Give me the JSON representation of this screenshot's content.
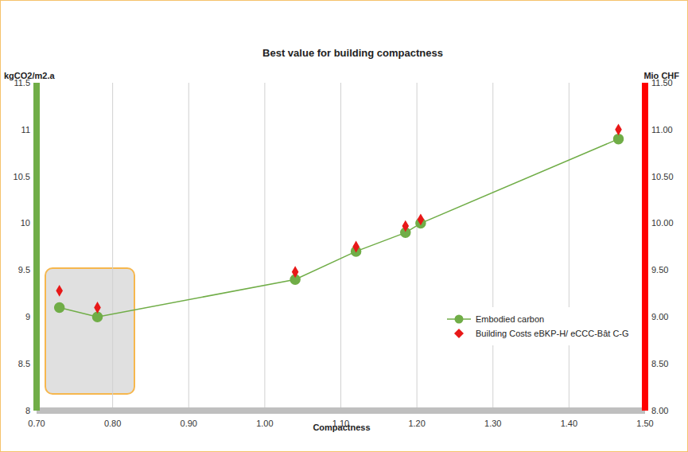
{
  "chart_data": {
    "type": "scatter",
    "title": "Best value for building compactness",
    "x_label": "Compactness",
    "y_label": "kgCO2/m2.a",
    "y2_label": "Mio CHF",
    "x": [
      0.73,
      0.78,
      1.04,
      1.12,
      1.185,
      1.205,
      1.465
    ],
    "series": [
      {
        "name": "Embodied carbon",
        "type": "line",
        "marker": "circle",
        "color": "#70ad47",
        "values": [
          9.1,
          9.0,
          9.4,
          9.7,
          9.9,
          10.0,
          10.9
        ]
      },
      {
        "name": "Building Costs eBKP-H/ eCCC-Bât C-G",
        "type": "scatter",
        "marker": "diamond",
        "color": "#e81818",
        "axis": "y2",
        "values": [
          9.28,
          9.1,
          9.48,
          9.75,
          9.97,
          10.04,
          11.0
        ]
      }
    ],
    "xlim": [
      0.7,
      1.5
    ],
    "xticks": [
      {
        "value": 0.7,
        "label": "0.70"
      },
      {
        "value": 0.8,
        "label": "0.80"
      },
      {
        "value": 0.9,
        "label": "0.90"
      },
      {
        "value": 1.0,
        "label": "1.00"
      },
      {
        "value": 1.1,
        "label": "1.10"
      },
      {
        "value": 1.2,
        "label": "1.20"
      },
      {
        "value": 1.3,
        "label": "1.30"
      },
      {
        "value": 1.4,
        "label": "1.40"
      },
      {
        "value": 1.5,
        "label": "1.50"
      }
    ],
    "ylim": [
      8,
      11.5
    ],
    "yticks": [
      8,
      8.5,
      9,
      9.5,
      10,
      10.5,
      11,
      11.5
    ],
    "y2lim": [
      8,
      11.5
    ],
    "y2ticks": [
      {
        "value": 8,
        "label": "8.00"
      },
      {
        "value": 8.5,
        "label": "8.50"
      },
      {
        "value": 9,
        "label": "9.00"
      },
      {
        "value": 9.5,
        "label": "9.50"
      },
      {
        "value": 10,
        "label": "10.00"
      },
      {
        "value": 10.5,
        "label": "10.50"
      },
      {
        "value": 11,
        "label": "11.00"
      },
      {
        "value": 11.5,
        "label": "11.50"
      }
    ],
    "grid": "x",
    "legend": "lower right"
  }
}
